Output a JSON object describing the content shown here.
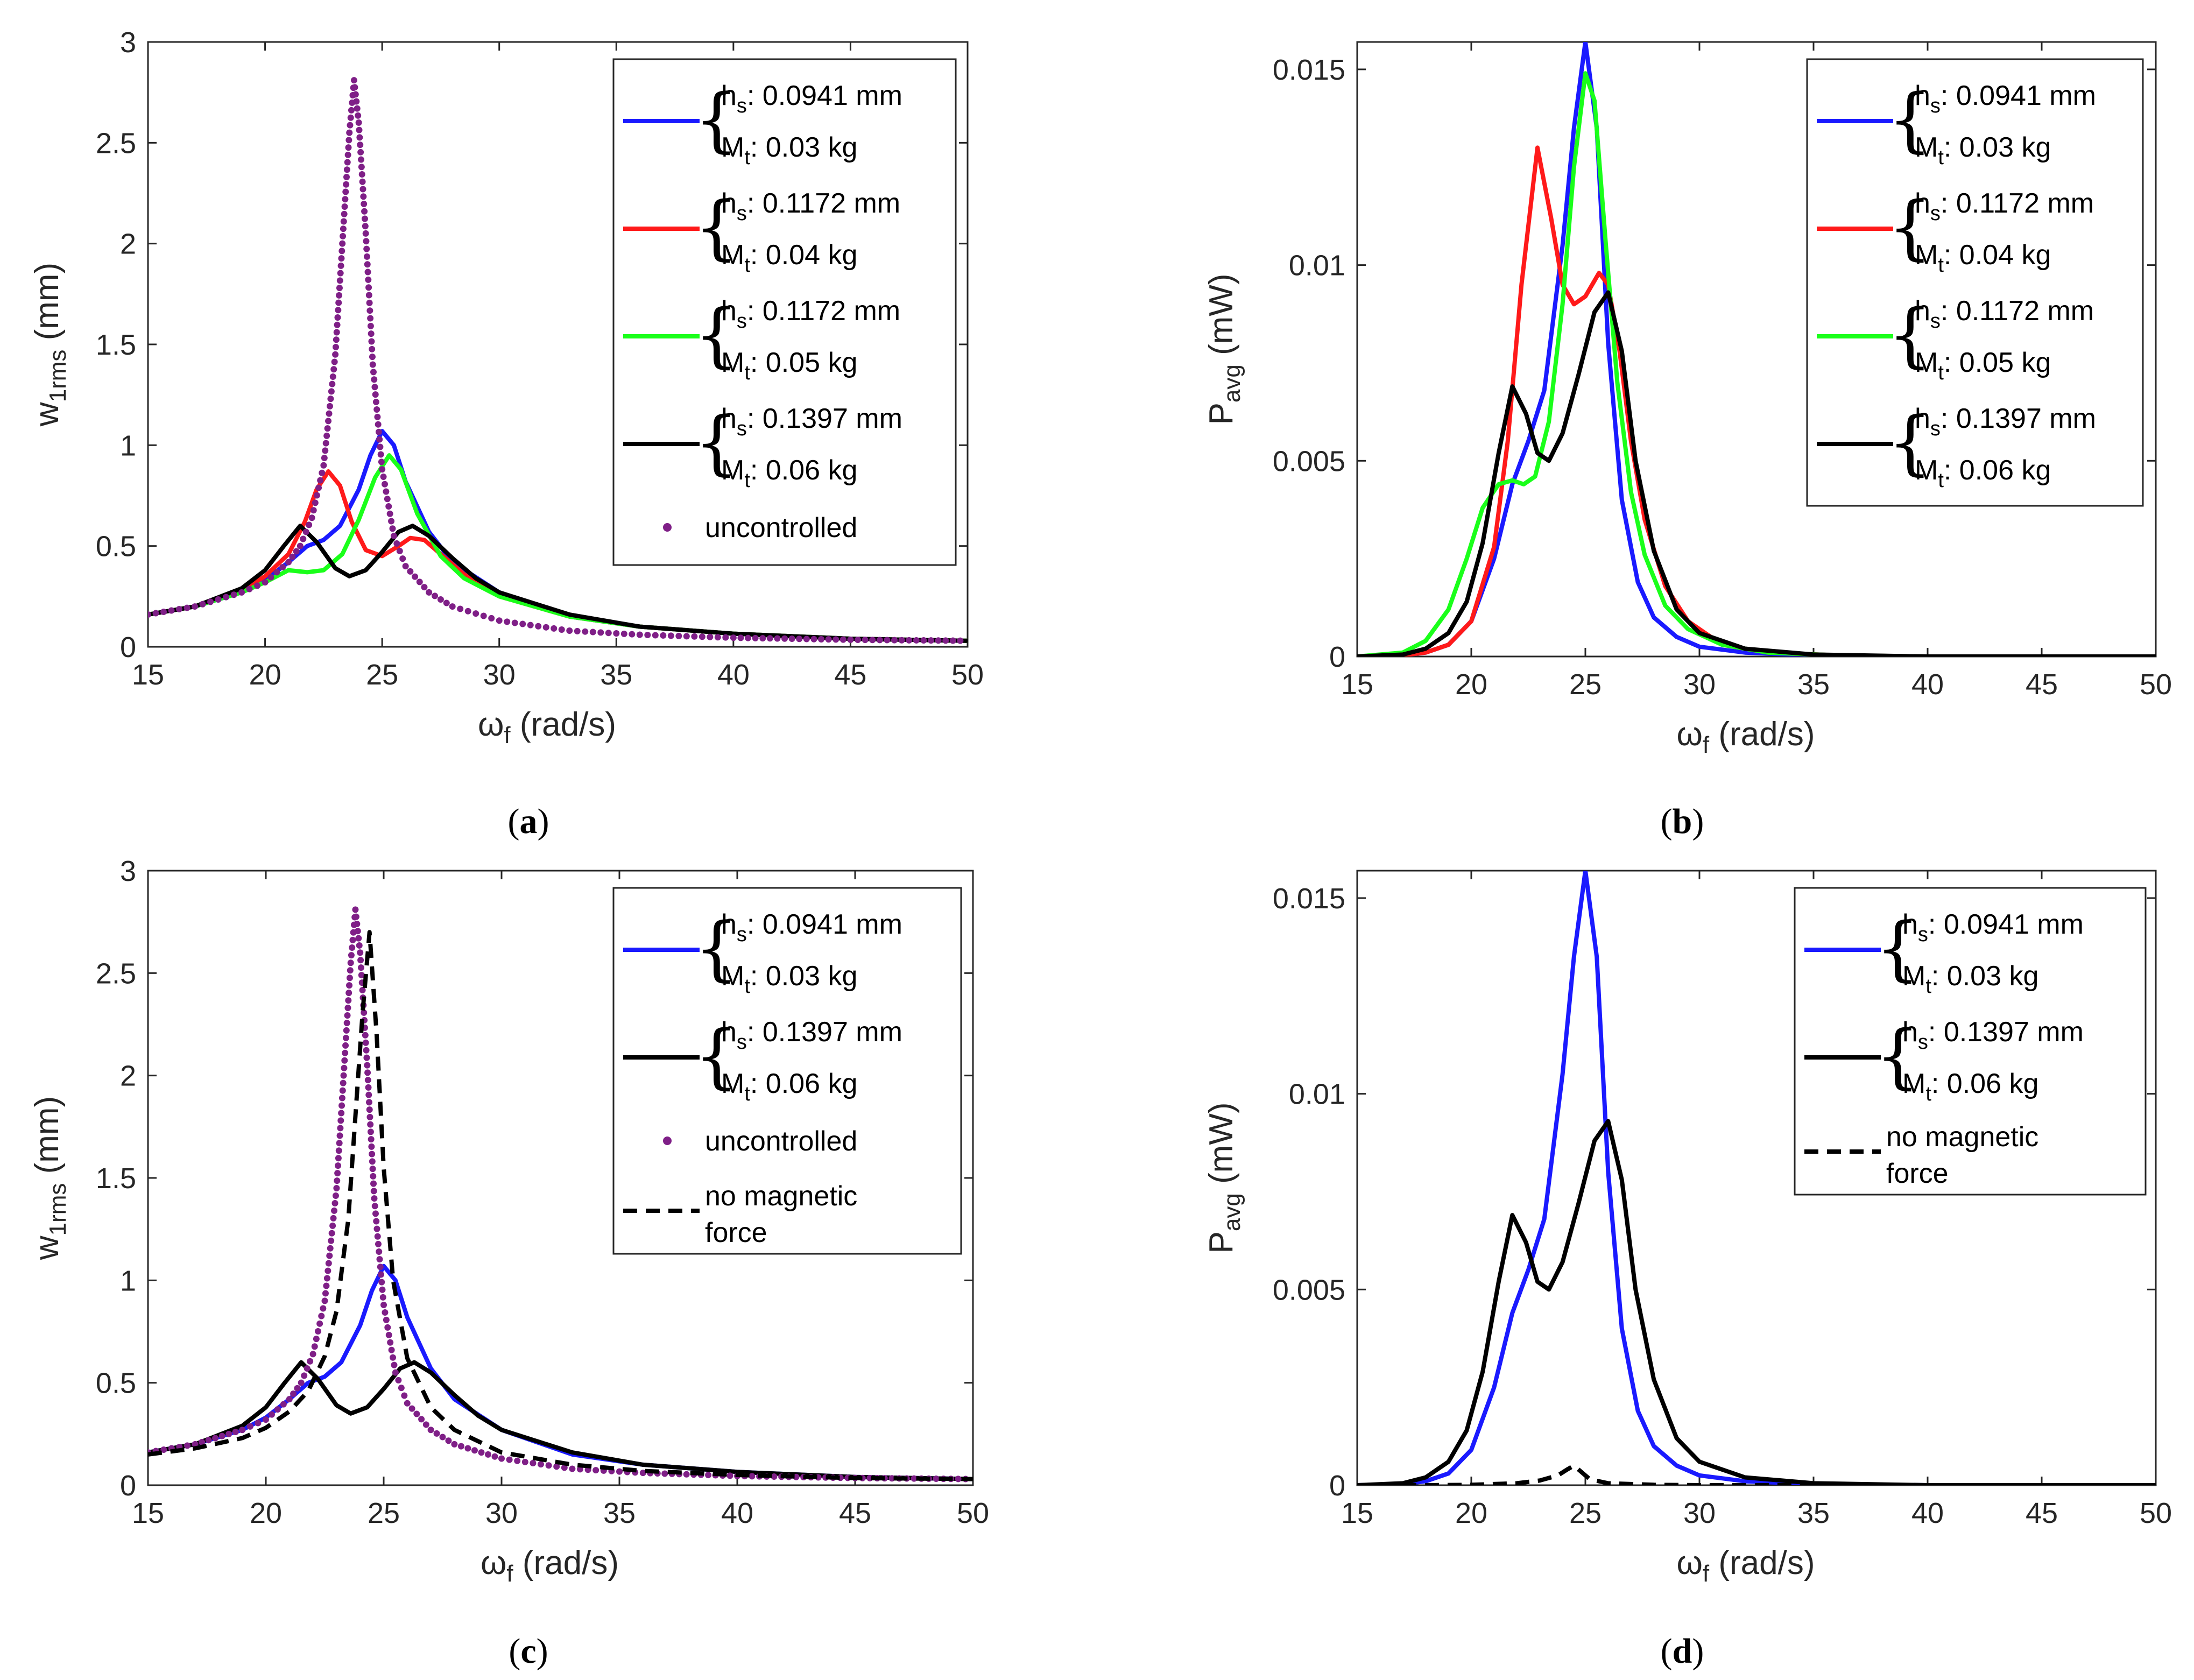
{
  "colors": {
    "blue": "#1a1aff",
    "red": "#ff1a1a",
    "green": "#1aff1a",
    "black": "#000000",
    "purple": "#7f1f87"
  },
  "legend_labels": {
    "a": {
      "hs": "0.0941 mm",
      "mt": "0.03 kg"
    },
    "b": {
      "hs": "0.1172 mm",
      "mt": "0.04 kg"
    },
    "c": {
      "hs": "0.1172 mm",
      "mt": "0.05 kg"
    },
    "d": {
      "hs": "0.1397 mm",
      "mt": "0.06 kg"
    },
    "uncontrolled": "uncontrolled",
    "nomag_line1": "no magnetic",
    "nomag_line2": "force"
  },
  "axis_text": {
    "w_main": "w",
    "w_sub": "1rms",
    "w_unit": " (mm)",
    "p_main": "P",
    "p_sub": "avg",
    "p_unit": " (mW)",
    "omega_main": "ω",
    "omega_sub": "f",
    "omega_unit": " (rad/s)",
    "hs_main": "h",
    "hs_sub": "s",
    "mt_main": "M",
    "mt_sub": "t"
  },
  "captions": {
    "a": "a",
    "b": "b",
    "c": "c",
    "d": "d"
  },
  "chart_data": [
    {
      "panel": "a",
      "type": "line",
      "title": "",
      "xlabel": "ω_f (rad/s)",
      "ylabel": "w_1rms (mm)",
      "xlim": [
        15,
        50
      ],
      "ylim": [
        0,
        3
      ],
      "xticks": [
        "15",
        "20",
        "25",
        "30",
        "35",
        "40",
        "45",
        "50"
      ],
      "yticks": [
        "0",
        "0.5",
        "1",
        "1.5",
        "2",
        "2.5",
        "3"
      ],
      "legend_position": "top-right",
      "series": [
        {
          "name": "h_s: 0.0941 mm, M_t: 0.03 kg",
          "style": "solid",
          "color": "blue",
          "x": [
            15,
            17,
            19,
            20,
            21,
            21.8,
            22.5,
            23.2,
            24,
            24.5,
            25,
            25.5,
            26,
            27,
            28,
            30,
            33,
            36,
            40,
            45,
            50
          ],
          "y": [
            0.16,
            0.2,
            0.27,
            0.33,
            0.42,
            0.5,
            0.53,
            0.6,
            0.78,
            0.95,
            1.07,
            1.0,
            0.82,
            0.57,
            0.42,
            0.27,
            0.15,
            0.1,
            0.065,
            0.04,
            0.03
          ]
        },
        {
          "name": "h_s: 0.1172 mm, M_t: 0.04 kg",
          "style": "solid",
          "color": "red",
          "x": [
            15,
            17,
            19,
            20,
            21,
            21.7,
            22.2,
            22.7,
            23.2,
            23.7,
            24.3,
            25,
            25.7,
            26.2,
            26.8,
            27.5,
            28.5,
            30,
            33,
            36,
            40,
            45,
            50
          ],
          "y": [
            0.16,
            0.2,
            0.28,
            0.35,
            0.46,
            0.62,
            0.78,
            0.87,
            0.8,
            0.62,
            0.48,
            0.45,
            0.5,
            0.54,
            0.53,
            0.46,
            0.36,
            0.25,
            0.15,
            0.1,
            0.065,
            0.04,
            0.03
          ]
        },
        {
          "name": "h_s: 0.1172 mm, M_t: 0.05 kg",
          "style": "solid",
          "color": "green",
          "x": [
            15,
            17,
            19,
            20,
            21,
            21.8,
            22.5,
            23.3,
            24,
            24.7,
            25.3,
            25.8,
            26.5,
            27.5,
            28.5,
            30,
            33,
            36,
            40,
            45,
            50
          ],
          "y": [
            0.16,
            0.2,
            0.27,
            0.32,
            0.38,
            0.37,
            0.38,
            0.46,
            0.63,
            0.84,
            0.95,
            0.88,
            0.66,
            0.45,
            0.34,
            0.25,
            0.15,
            0.1,
            0.065,
            0.04,
            0.03
          ]
        },
        {
          "name": "h_s: 0.1397 mm, M_t: 0.06 kg",
          "style": "solid",
          "color": "black",
          "x": [
            15,
            17,
            19,
            20,
            20.8,
            21.5,
            22.2,
            23,
            23.6,
            24.3,
            25,
            25.7,
            26.3,
            27,
            28,
            29,
            30,
            33,
            36,
            40,
            45,
            50
          ],
          "y": [
            0.16,
            0.2,
            0.29,
            0.38,
            0.5,
            0.6,
            0.52,
            0.39,
            0.35,
            0.38,
            0.47,
            0.57,
            0.6,
            0.55,
            0.44,
            0.34,
            0.27,
            0.16,
            0.1,
            0.065,
            0.04,
            0.03
          ]
        },
        {
          "name": "uncontrolled",
          "style": "dots",
          "color": "purple",
          "x": [
            15,
            17,
            19,
            20,
            21,
            21.5,
            22,
            22.5,
            23,
            23.3,
            23.6,
            23.8,
            24,
            24.3,
            24.6,
            25,
            25.5,
            26,
            27,
            28,
            30,
            33,
            36,
            40,
            45,
            50
          ],
          "y": [
            0.16,
            0.2,
            0.27,
            0.32,
            0.42,
            0.5,
            0.64,
            0.9,
            1.45,
            2.0,
            2.55,
            2.81,
            2.6,
            2.05,
            1.4,
            0.88,
            0.55,
            0.4,
            0.27,
            0.2,
            0.13,
            0.08,
            0.06,
            0.045,
            0.035,
            0.03
          ]
        }
      ]
    },
    {
      "panel": "b",
      "type": "line",
      "title": "",
      "xlabel": "ω_f (rad/s)",
      "ylabel": "P_avg (mW)",
      "xlim": [
        15,
        50
      ],
      "ylim": [
        0,
        0.0157
      ],
      "xticks": [
        "15",
        "20",
        "25",
        "30",
        "35",
        "40",
        "45",
        "50"
      ],
      "yticks": [
        "0",
        "0.005",
        "0.01",
        "0.015"
      ],
      "legend_position": "top-right",
      "series": [
        {
          "name": "h_s: 0.0941 mm, M_t: 0.03 kg",
          "style": "solid",
          "color": "blue",
          "x": [
            15,
            17,
            18,
            19,
            20,
            21,
            21.8,
            22.5,
            23.2,
            24,
            24.5,
            25,
            25.5,
            26,
            26.6,
            27.3,
            28,
            29,
            30,
            32,
            35,
            40,
            50
          ],
          "y": [
            0,
            3e-05,
            0.0001,
            0.0003,
            0.0009,
            0.0025,
            0.0044,
            0.0055,
            0.0068,
            0.0105,
            0.0135,
            0.0157,
            0.0135,
            0.008,
            0.004,
            0.0019,
            0.001,
            0.0005,
            0.00025,
            0.0001,
            3e-05,
            0,
            0
          ]
        },
        {
          "name": "h_s: 0.1172 mm, M_t: 0.04 kg",
          "style": "solid",
          "color": "red",
          "x": [
            15,
            17,
            18,
            19,
            20,
            21,
            21.6,
            22.2,
            22.9,
            23.5,
            24,
            24.5,
            25,
            25.6,
            26,
            26.5,
            27,
            27.6,
            28.5,
            29.5,
            31,
            33,
            36,
            40,
            50
          ],
          "y": [
            0,
            3e-05,
            0.0001,
            0.0003,
            0.0009,
            0.0028,
            0.0055,
            0.0095,
            0.013,
            0.0112,
            0.0095,
            0.009,
            0.0092,
            0.0098,
            0.0095,
            0.0078,
            0.0055,
            0.0035,
            0.0018,
            0.0009,
            0.0003,
            0.0001,
            3e-05,
            0,
            0
          ]
        },
        {
          "name": "h_s: 0.1172 mm, M_t: 0.05 kg",
          "style": "solid",
          "color": "green",
          "x": [
            15,
            17,
            18,
            19,
            19.8,
            20.5,
            21.2,
            21.8,
            22.3,
            22.8,
            23.4,
            24,
            24.5,
            25,
            25.4,
            25.9,
            26.4,
            27,
            27.6,
            28.5,
            29.5,
            31,
            33,
            36,
            40,
            50
          ],
          "y": [
            0,
            0.0001,
            0.0004,
            0.0012,
            0.0025,
            0.0038,
            0.0044,
            0.0045,
            0.0044,
            0.0046,
            0.006,
            0.009,
            0.0125,
            0.0149,
            0.0142,
            0.0105,
            0.007,
            0.0042,
            0.0026,
            0.0013,
            0.0007,
            0.0003,
            0.0001,
            3e-05,
            0,
            0
          ]
        },
        {
          "name": "h_s: 0.1397 mm, M_t: 0.06 kg",
          "style": "solid",
          "color": "black",
          "x": [
            15,
            17,
            18,
            19,
            19.8,
            20.5,
            21.2,
            21.8,
            22.4,
            22.9,
            23.4,
            24,
            24.7,
            25.4,
            26,
            26.6,
            27.2,
            28,
            29,
            30,
            32,
            35,
            40,
            50
          ],
          "y": [
            0,
            5e-05,
            0.0002,
            0.0006,
            0.0014,
            0.0029,
            0.0052,
            0.0069,
            0.0062,
            0.0052,
            0.005,
            0.0057,
            0.0072,
            0.0088,
            0.0093,
            0.0078,
            0.005,
            0.0027,
            0.0012,
            0.0006,
            0.0002,
            5e-05,
            0,
            0
          ]
        }
      ]
    },
    {
      "panel": "c",
      "type": "line",
      "title": "",
      "xlabel": "ω_f (rad/s)",
      "ylabel": "w_1rms (mm)",
      "xlim": [
        15,
        50
      ],
      "ylim": [
        0,
        3
      ],
      "xticks": [
        "15",
        "20",
        "25",
        "30",
        "35",
        "40",
        "45",
        "50"
      ],
      "yticks": [
        "0",
        "0.5",
        "1",
        "1.5",
        "2",
        "2.5",
        "3"
      ],
      "legend_position": "top-right",
      "series": [
        {
          "name": "h_s: 0.0941 mm, M_t: 0.03 kg",
          "style": "solid",
          "color": "blue",
          "x": [
            15,
            17,
            19,
            20,
            21,
            21.8,
            22.5,
            23.2,
            24,
            24.5,
            25,
            25.5,
            26,
            27,
            28,
            30,
            33,
            36,
            40,
            45,
            50
          ],
          "y": [
            0.16,
            0.2,
            0.27,
            0.33,
            0.42,
            0.5,
            0.53,
            0.6,
            0.78,
            0.95,
            1.07,
            1.0,
            0.82,
            0.57,
            0.42,
            0.27,
            0.15,
            0.1,
            0.065,
            0.04,
            0.03
          ]
        },
        {
          "name": "h_s: 0.1397 mm, M_t: 0.06 kg",
          "style": "solid",
          "color": "black",
          "x": [
            15,
            17,
            19,
            20,
            20.8,
            21.5,
            22.2,
            23,
            23.6,
            24.3,
            25,
            25.7,
            26.3,
            27,
            28,
            29,
            30,
            33,
            36,
            40,
            45,
            50
          ],
          "y": [
            0.16,
            0.2,
            0.29,
            0.38,
            0.5,
            0.6,
            0.52,
            0.39,
            0.35,
            0.38,
            0.47,
            0.57,
            0.6,
            0.55,
            0.44,
            0.34,
            0.27,
            0.16,
            0.1,
            0.065,
            0.04,
            0.03
          ]
        },
        {
          "name": "uncontrolled",
          "style": "dots",
          "color": "purple",
          "x": [
            15,
            17,
            19,
            20,
            21,
            21.5,
            22,
            22.5,
            23,
            23.3,
            23.6,
            23.8,
            24,
            24.3,
            24.6,
            25,
            25.5,
            26,
            27,
            28,
            30,
            33,
            36,
            40,
            45,
            50
          ],
          "y": [
            0.16,
            0.2,
            0.27,
            0.32,
            0.42,
            0.5,
            0.64,
            0.9,
            1.45,
            2.0,
            2.55,
            2.81,
            2.6,
            2.05,
            1.4,
            0.88,
            0.55,
            0.4,
            0.27,
            0.2,
            0.13,
            0.08,
            0.06,
            0.045,
            0.035,
            0.03
          ]
        },
        {
          "name": "no magnetic force",
          "style": "dashed",
          "color": "black",
          "x": [
            15,
            17,
            19,
            20,
            21,
            21.8,
            22.5,
            23,
            23.5,
            23.8,
            24.1,
            24.4,
            24.7,
            25,
            25.4,
            26,
            27,
            28,
            30,
            33,
            36,
            40,
            45,
            50
          ],
          "y": [
            0.15,
            0.18,
            0.23,
            0.28,
            0.36,
            0.46,
            0.63,
            0.85,
            1.3,
            1.8,
            2.3,
            2.7,
            2.2,
            1.55,
            1.0,
            0.62,
            0.38,
            0.27,
            0.16,
            0.1,
            0.07,
            0.05,
            0.035,
            0.03
          ]
        }
      ]
    },
    {
      "panel": "d",
      "type": "line",
      "title": "",
      "xlabel": "ω_f (rad/s)",
      "ylabel": "P_avg (mW)",
      "xlim": [
        15,
        50
      ],
      "ylim": [
        0,
        0.0157
      ],
      "xticks": [
        "15",
        "20",
        "25",
        "30",
        "35",
        "40",
        "45",
        "50"
      ],
      "yticks": [
        "0",
        "0.005",
        "0.01",
        "0.015"
      ],
      "legend_position": "top-right",
      "series": [
        {
          "name": "h_s: 0.0941 mm, M_t: 0.03 kg",
          "style": "solid",
          "color": "blue",
          "x": [
            15,
            17,
            18,
            19,
            20,
            21,
            21.8,
            22.5,
            23.2,
            24,
            24.5,
            25,
            25.5,
            26,
            26.6,
            27.3,
            28,
            29,
            30,
            32,
            35,
            40,
            50
          ],
          "y": [
            0,
            3e-05,
            0.0001,
            0.0003,
            0.0009,
            0.0025,
            0.0044,
            0.0055,
            0.0068,
            0.0105,
            0.0135,
            0.0157,
            0.0135,
            0.008,
            0.004,
            0.0019,
            0.001,
            0.0005,
            0.00025,
            0.0001,
            3e-05,
            0,
            0
          ]
        },
        {
          "name": "h_s: 0.1397 mm, M_t: 0.06 kg",
          "style": "solid",
          "color": "black",
          "x": [
            15,
            17,
            18,
            19,
            19.8,
            20.5,
            21.2,
            21.8,
            22.4,
            22.9,
            23.4,
            24,
            24.7,
            25.4,
            26,
            26.6,
            27.2,
            28,
            29,
            30,
            32,
            35,
            40,
            50
          ],
          "y": [
            0,
            5e-05,
            0.0002,
            0.0006,
            0.0014,
            0.0029,
            0.0052,
            0.0069,
            0.0062,
            0.0052,
            0.005,
            0.0057,
            0.0072,
            0.0088,
            0.0093,
            0.0078,
            0.005,
            0.0027,
            0.0012,
            0.0006,
            0.0002,
            5e-05,
            0,
            0
          ]
        },
        {
          "name": "no magnetic force",
          "style": "dashed",
          "color": "black",
          "x": [
            15,
            18,
            20,
            22,
            23,
            23.8,
            24.2,
            24.5,
            24.8,
            25.2,
            26,
            28,
            30,
            35,
            40,
            50
          ],
          "y": [
            0,
            0,
            1e-05,
            5e-05,
            0.00012,
            0.00025,
            0.0004,
            0.0005,
            0.00035,
            0.00015,
            5e-05,
            1e-05,
            0,
            0,
            0,
            0
          ]
        }
      ]
    }
  ]
}
